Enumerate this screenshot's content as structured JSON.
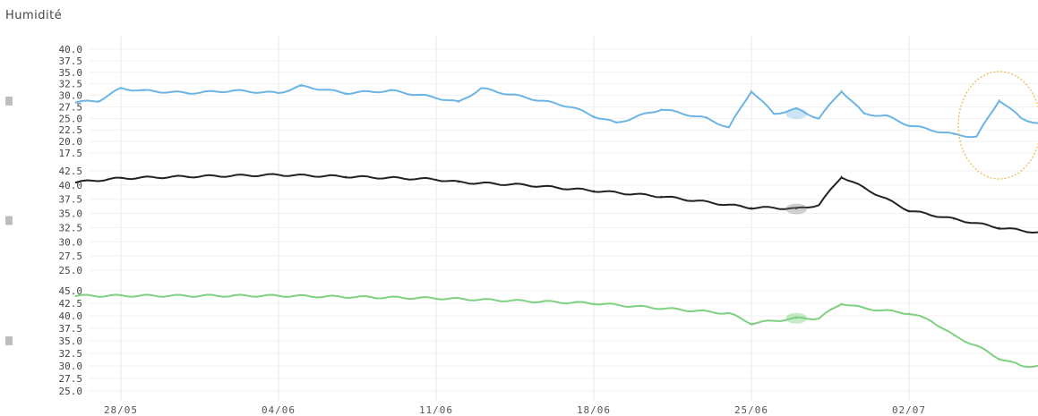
{
  "chart_data": {
    "type": "line",
    "title": "Humidité",
    "grid": true,
    "x_ticks": [
      "28/05",
      "04/06",
      "11/06",
      "18/06",
      "25/06",
      "02/07"
    ],
    "panels": [
      {
        "color": "#6cb4e4",
        "ylim": [
          17.5,
          40.0
        ],
        "y_ticks": [
          "40.0",
          "37.5",
          "35.0",
          "32.5",
          "30.0",
          "27.5",
          "25.0",
          "22.5",
          "20.0",
          "17.5"
        ],
        "x": [
          "26/05",
          "27/05",
          "28/05",
          "29/05",
          "31/05",
          "02/06",
          "04/06",
          "05/06",
          "07/06",
          "09/06",
          "11/06",
          "12/06",
          "13/06",
          "15/06",
          "17/06",
          "18/06",
          "19/06",
          "21/06",
          "23/06",
          "24/06",
          "25/06",
          "26/06",
          "27/06",
          "28/06",
          "29/06",
          "30/06",
          "01/07",
          "02/07",
          "04/07",
          "05/07",
          "06/07",
          "07/07",
          "08/07"
        ],
        "values": [
          28.5,
          28.8,
          31.5,
          31.0,
          30.5,
          31.0,
          30.5,
          32.0,
          30.5,
          31.0,
          29.5,
          28.5,
          31.5,
          29.5,
          27.5,
          25.5,
          24.0,
          27.0,
          25.0,
          23.0,
          31.0,
          26.0,
          27.0,
          25.0,
          31.0,
          26.0,
          25.5,
          23.5,
          21.5,
          21.0,
          29.0,
          25.0,
          23.5
        ]
      },
      {
        "color": "#222222",
        "ylim": [
          25.0,
          42.5
        ],
        "y_ticks": [
          "42.5",
          "40.0",
          "37.5",
          "35.0",
          "32.5",
          "30.0",
          "27.5",
          "25.0"
        ],
        "x": [
          "26/05",
          "28/05",
          "31/05",
          "04/06",
          "07/06",
          "11/06",
          "12/06",
          "15/06",
          "18/06",
          "21/06",
          "24/06",
          "25/06",
          "26/06",
          "27/06",
          "28/06",
          "29/06",
          "30/06",
          "02/07",
          "04/07",
          "06/07",
          "08/07"
        ],
        "values": [
          40.5,
          41.2,
          41.5,
          41.8,
          41.5,
          41.0,
          40.5,
          40.0,
          39.0,
          38.0,
          36.5,
          36.0,
          36.0,
          35.8,
          36.5,
          41.5,
          39.5,
          35.5,
          34.0,
          32.5,
          31.5
        ]
      },
      {
        "color": "#7fd081",
        "ylim": [
          25.0,
          45.0
        ],
        "y_ticks": [
          "45.0",
          "42.5",
          "40.0",
          "37.5",
          "35.0",
          "32.5",
          "30.0",
          "27.5",
          "25.0"
        ],
        "x": [
          "26/05",
          "28/05",
          "04/06",
          "11/06",
          "18/06",
          "21/06",
          "24/06",
          "25/06",
          "26/06",
          "27/06",
          "28/06",
          "29/06",
          "30/06",
          "02/07",
          "03/07",
          "04/07",
          "05/07",
          "06/07",
          "07/07",
          "08/07"
        ],
        "values": [
          44.0,
          44.0,
          44.0,
          43.5,
          42.5,
          41.5,
          40.5,
          38.5,
          39.0,
          39.5,
          39.5,
          42.5,
          41.5,
          40.5,
          39.0,
          36.0,
          34.0,
          31.5,
          30.0,
          30.0
        ]
      }
    ]
  }
}
